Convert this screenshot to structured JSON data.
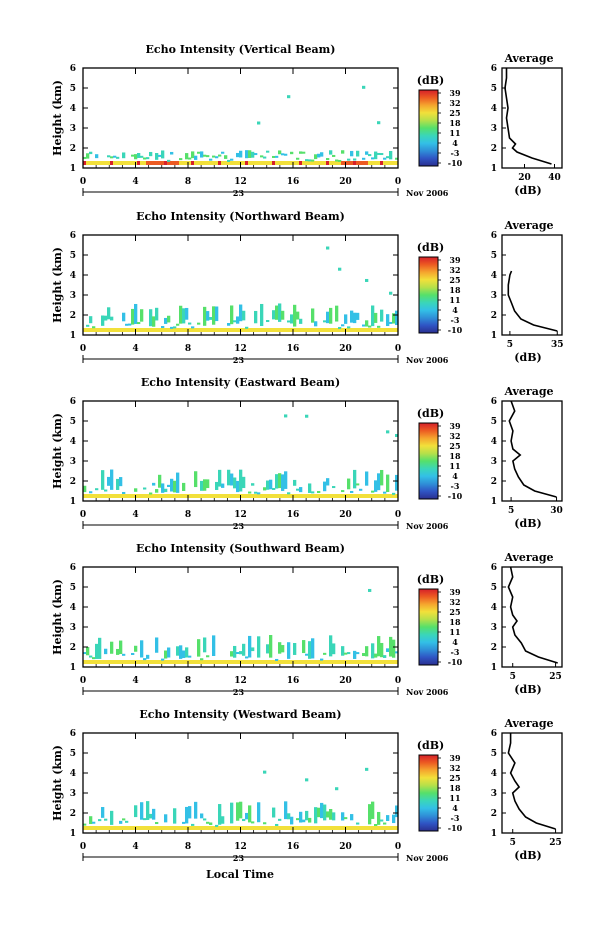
{
  "figure": {
    "xlabel": "Local Time"
  },
  "colorbar": {
    "unit": "(dB)",
    "ticks": [
      "39",
      "32",
      "25",
      "18",
      "11",
      "4",
      "-3",
      "-10"
    ],
    "colors": [
      "#2a2f8f",
      "#2f54c4",
      "#2f8fd8",
      "#33c0e6",
      "#3ad6b8",
      "#56e06a",
      "#b6e04a",
      "#f2e03a",
      "#f5a52e",
      "#ec5a22",
      "#d6202a"
    ]
  },
  "chart_data": [
    {
      "type": "heatmap",
      "title": "Echo Intensity (Vertical Beam)",
      "ylabel": "Height (km)",
      "xlabel": "",
      "x_ticks": [
        "0",
        "4",
        "8",
        "12",
        "16",
        "20",
        "0"
      ],
      "date_label": "23",
      "month_label": "Nov 2006",
      "ylim": [
        1,
        6
      ],
      "y_ticks": [
        "1",
        "2",
        "3",
        "4",
        "5",
        "6"
      ],
      "value_unit": "dB",
      "clim": [
        -10,
        39
      ],
      "profile": {
        "title": "Average",
        "xlabel": "(dB)",
        "x_ticks": [
          "20",
          "40"
        ],
        "xlim": [
          5,
          45
        ],
        "heights": [
          1.2,
          1.5,
          1.8,
          2.0,
          2.2,
          2.5,
          3.0,
          3.5,
          4.0,
          4.5,
          5.0,
          5.5,
          6.0
        ],
        "values": [
          38,
          25,
          15,
          12,
          14,
          10,
          9,
          8,
          9,
          8,
          7,
          8,
          8
        ]
      }
    },
    {
      "type": "heatmap",
      "title": "Echo Intensity (Northward Beam)",
      "ylabel": "Height (km)",
      "xlabel": "",
      "x_ticks": [
        "0",
        "4",
        "8",
        "12",
        "16",
        "20",
        "0"
      ],
      "date_label": "23",
      "month_label": "Nov 2006",
      "ylim": [
        1,
        6
      ],
      "y_ticks": [
        "1",
        "2",
        "3",
        "4",
        "5",
        "6"
      ],
      "value_unit": "dB",
      "clim": [
        -10,
        39
      ],
      "profile": {
        "title": "Average",
        "xlabel": "(dB)",
        "x_ticks": [
          "5",
          "35"
        ],
        "xlim": [
          0,
          38
        ],
        "heights": [
          1.2,
          1.5,
          1.8,
          2.2,
          2.6,
          3.0,
          3.5,
          4.0,
          4.2
        ],
        "values": [
          35,
          20,
          12,
          8,
          6,
          4,
          4,
          5,
          6
        ]
      }
    },
    {
      "type": "heatmap",
      "title": "Echo Intensity (Eastward Beam)",
      "ylabel": "Height (km)",
      "xlabel": "",
      "x_ticks": [
        "0",
        "4",
        "8",
        "12",
        "16",
        "20",
        "0"
      ],
      "date_label": "23",
      "month_label": "Nov 2006",
      "ylim": [
        1,
        6
      ],
      "y_ticks": [
        "1",
        "2",
        "3",
        "4",
        "5",
        "6"
      ],
      "value_unit": "dB",
      "clim": [
        -10,
        39
      ],
      "profile": {
        "title": "Average",
        "xlabel": "(dB)",
        "x_ticks": [
          "5",
          "30"
        ],
        "xlim": [
          0,
          33
        ],
        "heights": [
          1.2,
          1.5,
          1.8,
          2.2,
          2.6,
          3.0,
          3.3,
          3.6,
          4.0,
          4.5,
          5.0,
          5.5,
          6.0
        ],
        "values": [
          30,
          18,
          12,
          9,
          7,
          6,
          10,
          6,
          5,
          6,
          4,
          7,
          5
        ]
      }
    },
    {
      "type": "heatmap",
      "title": "Echo Intensity (Southward Beam)",
      "ylabel": "Height (km)",
      "xlabel": "",
      "x_ticks": [
        "0",
        "4",
        "8",
        "12",
        "16",
        "20",
        "0"
      ],
      "date_label": "23",
      "month_label": "Nov 2006",
      "ylim": [
        1,
        6
      ],
      "y_ticks": [
        "1",
        "2",
        "3",
        "4",
        "5",
        "6"
      ],
      "value_unit": "dB",
      "clim": [
        -10,
        39
      ],
      "profile": {
        "title": "Average",
        "xlabel": "(dB)",
        "x_ticks": [
          "5",
          "25"
        ],
        "xlim": [
          0,
          28
        ],
        "heights": [
          1.2,
          1.5,
          1.8,
          2.2,
          2.6,
          3.0,
          3.3,
          3.6,
          4.0,
          4.5,
          5.0,
          5.5,
          6.0
        ],
        "values": [
          26,
          17,
          11,
          9,
          6,
          5,
          7,
          5,
          4,
          5,
          3,
          5,
          4
        ]
      }
    },
    {
      "type": "heatmap",
      "title": "Echo Intensity (Westward Beam)",
      "ylabel": "Height (km)",
      "xlabel": "",
      "x_ticks": [
        "0",
        "4",
        "8",
        "12",
        "16",
        "20",
        "0"
      ],
      "date_label": "23",
      "month_label": "Nov 2006",
      "ylim": [
        1,
        6
      ],
      "y_ticks": [
        "1",
        "2",
        "3",
        "4",
        "5",
        "6"
      ],
      "value_unit": "dB",
      "clim": [
        -10,
        39
      ],
      "profile": {
        "title": "Average",
        "xlabel": "(dB)",
        "x_ticks": [
          "5",
          "25"
        ],
        "xlim": [
          0,
          28
        ],
        "heights": [
          1.2,
          1.5,
          1.8,
          2.2,
          2.6,
          3.0,
          3.3,
          3.6,
          4.0,
          4.5,
          5.0,
          5.5,
          6.0
        ],
        "values": [
          25,
          16,
          11,
          8,
          6,
          5,
          8,
          6,
          4,
          6,
          3,
          4,
          4
        ]
      }
    }
  ]
}
